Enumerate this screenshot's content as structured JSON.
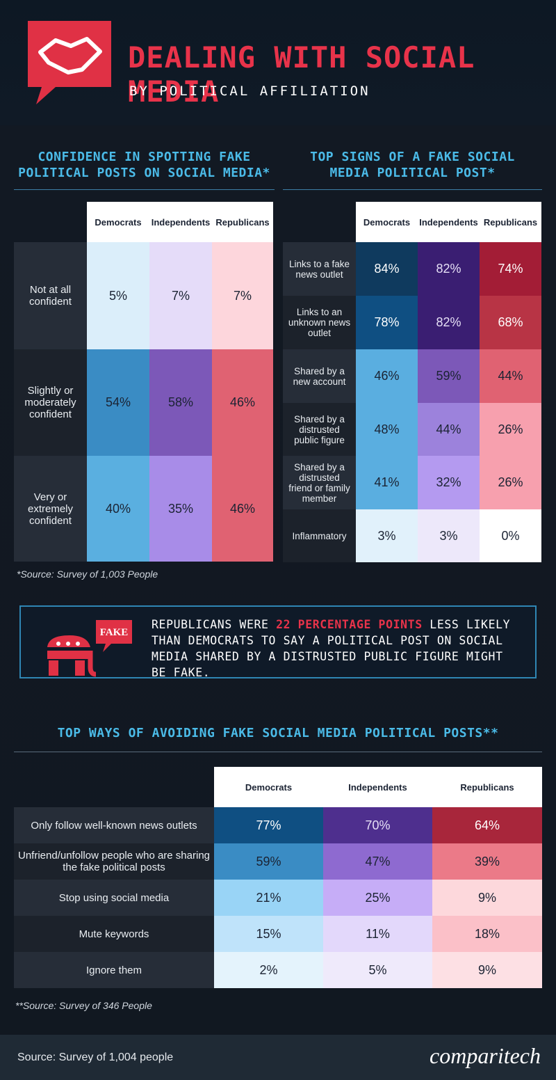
{
  "header": {
    "title": "DEALING WITH SOCIAL MEDIA",
    "subtitle": "BY POLITICAL AFFILIATION"
  },
  "confidence": {
    "title": [
      "CONFIDENCE IN SPOTTING FAKE",
      "POLITICAL POSTS ON SOCIAL MEDIA*"
    ],
    "columns": [
      "Democrats",
      "Independents",
      "Republicans"
    ],
    "rows": [
      {
        "label": "Not at all confident",
        "values": [
          "5%",
          "7%",
          "7%"
        ]
      },
      {
        "label": "Slightly or moderately confident",
        "values": [
          "54%",
          "58%",
          "46%"
        ]
      },
      {
        "label": "Very or extremely confident",
        "values": [
          "40%",
          "35%",
          "46%"
        ]
      }
    ],
    "note": "*Source: Survey of 1,003 People"
  },
  "signs": {
    "title": [
      "TOP SIGNS OF A FAKE SOCIAL",
      "MEDIA POLITICAL POST*"
    ],
    "columns": [
      "Democrats",
      "Independents",
      "Republicans"
    ],
    "rows": [
      {
        "label": "Links to a fake news outlet",
        "values": [
          "84%",
          "82%",
          "74%"
        ]
      },
      {
        "label": "Links to an unknown news outlet",
        "values": [
          "78%",
          "82%",
          "68%"
        ]
      },
      {
        "label": "Shared by a new account",
        "values": [
          "46%",
          "59%",
          "44%"
        ]
      },
      {
        "label": "Shared by a distrusted public figure",
        "values": [
          "48%",
          "44%",
          "26%"
        ]
      },
      {
        "label": "Shared by a distrusted friend or family member",
        "values": [
          "41%",
          "32%",
          "26%"
        ]
      },
      {
        "label": "Inflammatory",
        "values": [
          "3%",
          "3%",
          "0%"
        ]
      }
    ]
  },
  "callout": {
    "icon_label": "FAKE",
    "before": "REPUBLICANS WERE ",
    "highlight": "22 PERCENTAGE POINTS",
    "after": " LESS LIKELY THAN DEMOCRATS TO SAY A POLITICAL POST ON SOCIAL MEDIA SHARED BY A DISTRUSTED PUBLIC FIGURE MIGHT BE FAKE."
  },
  "avoid": {
    "title": "TOP WAYS OF AVOIDING FAKE SOCIAL MEDIA POLITICAL POSTS**",
    "columns": [
      "Democrats",
      "Independents",
      "Republicans"
    ],
    "rows": [
      {
        "label": "Only follow well-known news outlets",
        "values": [
          "77%",
          "70%",
          "64%"
        ]
      },
      {
        "label": "Unfriend/unfollow people who are sharing the fake political posts",
        "values": [
          "59%",
          "47%",
          "39%"
        ]
      },
      {
        "label": "Stop using social media",
        "values": [
          "21%",
          "25%",
          "9%"
        ]
      },
      {
        "label": "Mute keywords",
        "values": [
          "15%",
          "11%",
          "18%"
        ]
      },
      {
        "label": "Ignore them",
        "values": [
          "2%",
          "5%",
          "9%"
        ]
      }
    ],
    "note": "**Source: Survey of 346 People"
  },
  "footer": {
    "source": "Source: Survey of 1,004 people",
    "logo": "comparitech"
  }
}
